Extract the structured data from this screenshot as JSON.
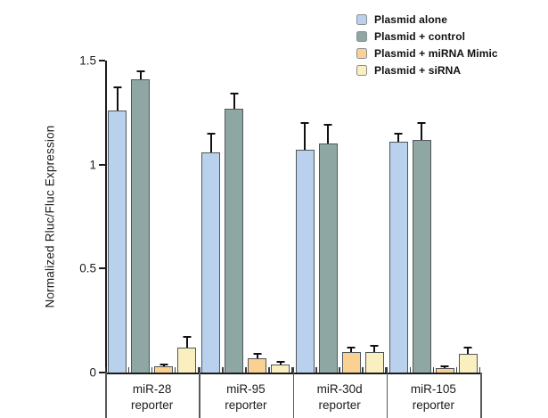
{
  "chart_data": {
    "type": "bar",
    "title": "",
    "xlabel": "",
    "ylabel": "Normalized Rluc/Fluc Expression",
    "ylim": [
      0,
      1.5
    ],
    "yticks": [
      0,
      0.5,
      1,
      1.5
    ],
    "ytick_labels": [
      "0",
      "0.5",
      "1",
      "1.5"
    ],
    "grid": false,
    "legend_position": "top-right",
    "categories": [
      "miR-28 reporter",
      "miR-95 reporter",
      "miR-30d reporter",
      "miR-105 reporter"
    ],
    "series": [
      {
        "name": "Plasmid alone",
        "color": "#b9d1ec",
        "values": [
          1.26,
          1.06,
          1.07,
          1.11
        ],
        "errors": [
          0.11,
          0.09,
          0.13,
          0.04
        ]
      },
      {
        "name": "Plasmid + control",
        "color": "#8ea7a2",
        "values": [
          1.41,
          1.27,
          1.1,
          1.12
        ],
        "errors": [
          0.04,
          0.07,
          0.09,
          0.08
        ]
      },
      {
        "name": "Plasmid + miRNA Mimic",
        "color": "#fbd193",
        "values": [
          0.03,
          0.07,
          0.1,
          0.02
        ],
        "errors": [
          0.01,
          0.02,
          0.02,
          0.01
        ]
      },
      {
        "name": "Plasmid + siRNA",
        "color": "#f9efbf",
        "values": [
          0.12,
          0.04,
          0.1,
          0.09
        ],
        "errors": [
          0.05,
          0.01,
          0.03,
          0.03
        ]
      }
    ],
    "error_bar_color": "#111111",
    "axis_color": "#1c1c1c"
  }
}
